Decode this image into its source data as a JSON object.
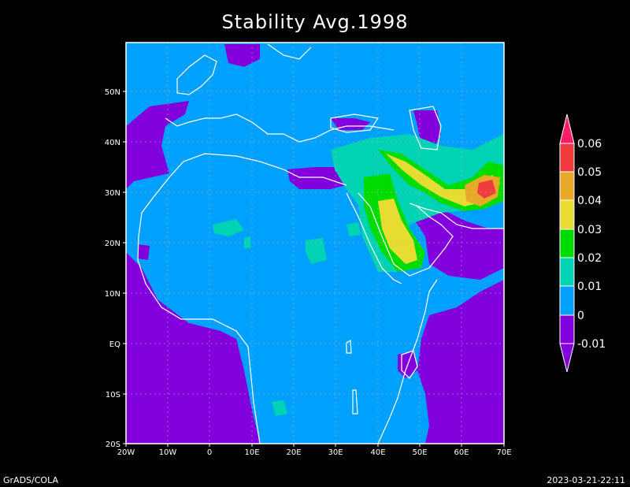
{
  "title": "Stability  Avg.1998",
  "footer": {
    "left": "GrADS/COLA",
    "right": "2023-03-21-22:11"
  },
  "axes": {
    "x_labels": [
      "20W",
      "10W",
      "0",
      "10E",
      "20E",
      "30E",
      "40E",
      "50E",
      "60E",
      "70E"
    ],
    "y_labels": [
      "20S",
      "10S",
      "EQ",
      "10N",
      "20N",
      "30N",
      "40N",
      "50N"
    ]
  },
  "map_extent": {
    "lon": [
      -20,
      70
    ],
    "lat": [
      -20,
      60
    ]
  },
  "colorbar": {
    "levels": [
      "0.06",
      "0.05",
      "0.04",
      "0.03",
      "0.02",
      "0.01",
      "0",
      "-0.01"
    ],
    "colors": [
      "#ff1e64",
      "#f03c3c",
      "#e6aa28",
      "#e6dc32",
      "#00dc00",
      "#00d2b4",
      "#00a0ff",
      "#8200dc"
    ]
  },
  "field_colors": {
    "neg": "#8200dc",
    "zero": "#00a0ff",
    "c001": "#00d2b4",
    "c002": "#00dc00",
    "c003": "#e6dc32",
    "c004": "#e6aa28",
    "c005": "#f03c3c",
    "c006": "#ff1e64"
  }
}
